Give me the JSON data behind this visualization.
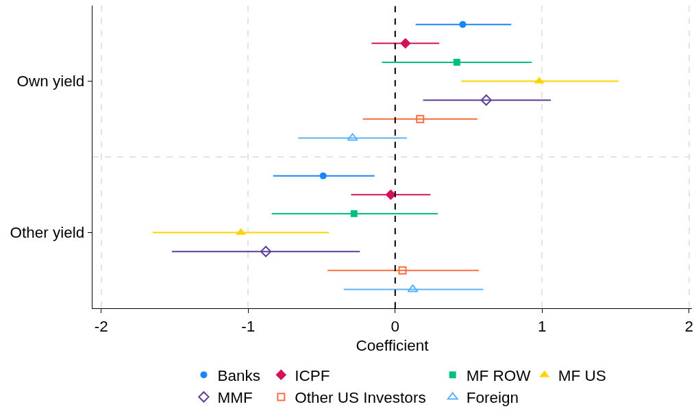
{
  "chart_data": {
    "type": "scatter",
    "orientation": "horizontal",
    "categories": [
      "Own yield",
      "Other yield"
    ],
    "xlabel": "Coefficient",
    "xlim": [
      -2.06,
      2.02
    ],
    "xticks": [
      -2,
      -1,
      0,
      1,
      2
    ],
    "grid": true,
    "legend": "bottom",
    "ref_lines": [
      {
        "axis": "x",
        "value": 0,
        "color": "#000000",
        "line_style": "dashed"
      }
    ],
    "series": [
      {
        "name": "Banks",
        "color": "#1a85ff",
        "marker": "circle",
        "values": [
          0.46,
          -0.49
        ],
        "errors": [
          [
            0.14,
            0.79
          ],
          [
            -0.83,
            -0.14
          ]
        ]
      },
      {
        "name": "ICPF",
        "color": "#d41159",
        "marker": "diamond",
        "values": [
          0.07,
          -0.03
        ],
        "errors": [
          [
            -0.16,
            0.3
          ],
          [
            -0.3,
            0.24
          ]
        ]
      },
      {
        "name": "MF ROW",
        "color": "#00bf7f",
        "marker": "square",
        "values": [
          0.42,
          -0.28
        ],
        "errors": [
          [
            -0.09,
            0.93
          ],
          [
            -0.84,
            0.29
          ]
        ]
      },
      {
        "name": "MF US",
        "color": "#ffd400",
        "marker": "triangle",
        "values": [
          0.98,
          -1.05
        ],
        "errors": [
          [
            0.45,
            1.52
          ],
          [
            -1.65,
            -0.45
          ]
        ]
      },
      {
        "name": "MMF",
        "color": "#5e3c99",
        "marker": "diamond-open",
        "values": [
          0.62,
          -0.88
        ],
        "errors": [
          [
            0.19,
            1.06
          ],
          [
            -1.52,
            -0.24
          ]
        ]
      },
      {
        "name": "Other US Investors",
        "color": "#ff6b3d",
        "marker": "square-open",
        "values": [
          0.17,
          0.05
        ],
        "errors": [
          [
            -0.22,
            0.56
          ],
          [
            -0.46,
            0.57
          ]
        ]
      },
      {
        "name": "Foreign",
        "color": "#5ab4f8",
        "marker": "triangle-open",
        "values": [
          -0.29,
          0.12
        ],
        "errors": [
          [
            -0.66,
            0.08
          ],
          [
            -0.35,
            0.6
          ]
        ]
      }
    ]
  }
}
